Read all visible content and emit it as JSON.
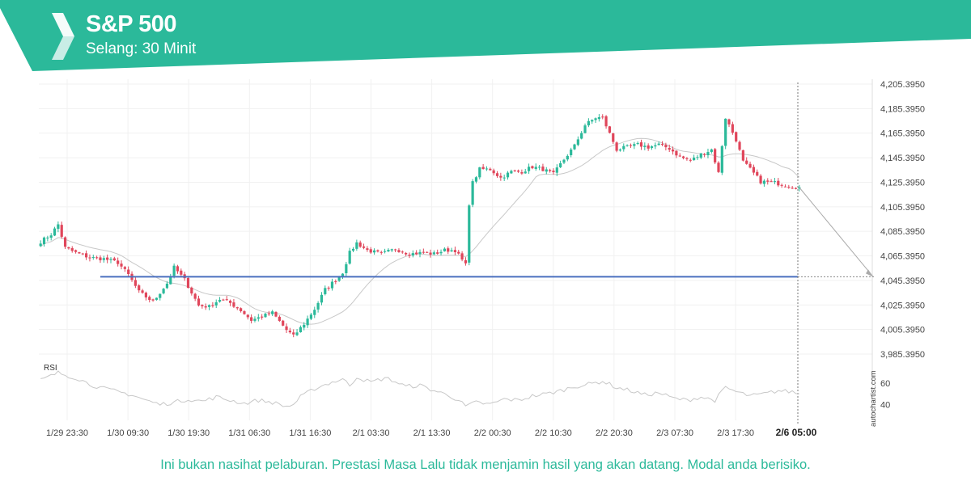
{
  "header": {
    "title": "S&P 500",
    "subtitle": "Selang: 30 Minit",
    "accent_color": "#2bb99a"
  },
  "watermark": "autochartist.com",
  "disclaimer": "Ini bukan nasihat pelaburan. Prestasi Masa Lalu tidak menjamin hasil yang akan datang. Modal anda berisiko.",
  "colors": {
    "bull": "#2bb99a",
    "bear": "#e0465b",
    "level_line": "#4a6fbf",
    "ma": "#c8c8c8",
    "rsi": "#c8c8c8"
  },
  "chart_data": {
    "type": "candlestick",
    "interval": "30 Minit",
    "y_tick_labels": [
      "4,205.3950",
      "4,185.3950",
      "4,165.3950",
      "4,145.3950",
      "4,125.3950",
      "4,105.3950",
      "4,085.3950",
      "4,065.3950",
      "4,045.3950",
      "4,025.3950",
      "4,005.3950",
      "3,985.3950"
    ],
    "ylim": [
      3985.395,
      4205.395
    ],
    "x_tick_labels": [
      "1/29 23:30",
      "1/30 09:30",
      "1/30 19:30",
      "1/31 06:30",
      "1/31 16:30",
      "2/1 03:30",
      "2/1 13:30",
      "2/2 00:30",
      "2/2 10:30",
      "2/2 20:30",
      "2/3 07:30",
      "2/3 17:30"
    ],
    "current_time_label": "2/6 05:00",
    "level": 4048.395,
    "projection": {
      "from": 4121,
      "to": 4048.395
    },
    "close_anchors": [
      [
        0,
        4077
      ],
      [
        3,
        4083
      ],
      [
        5,
        4091
      ],
      [
        7,
        4072
      ],
      [
        10,
        4068
      ],
      [
        14,
        4064
      ],
      [
        18,
        4063
      ],
      [
        22,
        4060
      ],
      [
        25,
        4050
      ],
      [
        28,
        4036
      ],
      [
        32,
        4028
      ],
      [
        36,
        4043
      ],
      [
        38,
        4056
      ],
      [
        41,
        4046
      ],
      [
        45,
        4025
      ],
      [
        48,
        4024
      ],
      [
        51,
        4030
      ],
      [
        54,
        4027
      ],
      [
        57,
        4021
      ],
      [
        60,
        4013
      ],
      [
        63,
        4016
      ],
      [
        66,
        4019
      ],
      [
        70,
        4005
      ],
      [
        72,
        4000
      ],
      [
        75,
        4010
      ],
      [
        78,
        4022
      ],
      [
        81,
        4038
      ],
      [
        84,
        4046
      ],
      [
        86,
        4052
      ],
      [
        88,
        4068
      ],
      [
        90,
        4076
      ],
      [
        93,
        4070
      ],
      [
        97,
        4067
      ],
      [
        101,
        4071
      ],
      [
        105,
        4067
      ],
      [
        109,
        4068
      ],
      [
        112,
        4067
      ],
      [
        115,
        4070
      ],
      [
        118,
        4070
      ],
      [
        121,
        4058
      ],
      [
        122,
        4108
      ],
      [
        123,
        4125
      ],
      [
        125,
        4136
      ],
      [
        128,
        4136
      ],
      [
        131,
        4129
      ],
      [
        134,
        4134
      ],
      [
        137,
        4134
      ],
      [
        140,
        4138
      ],
      [
        143,
        4136
      ],
      [
        146,
        4132
      ],
      [
        149,
        4144
      ],
      [
        152,
        4155
      ],
      [
        155,
        4172
      ],
      [
        158,
        4178
      ],
      [
        160,
        4178
      ],
      [
        162,
        4165
      ],
      [
        164,
        4152
      ],
      [
        167,
        4154
      ],
      [
        170,
        4156
      ],
      [
        173,
        4154
      ],
      [
        176,
        4156
      ],
      [
        179,
        4153
      ],
      [
        182,
        4146
      ],
      [
        185,
        4143
      ],
      [
        188,
        4148
      ],
      [
        191,
        4152
      ],
      [
        193,
        4133
      ],
      [
        195,
        4178
      ],
      [
        198,
        4160
      ],
      [
        200,
        4142
      ],
      [
        202,
        4136
      ],
      [
        205,
        4126
      ],
      [
        209,
        4125
      ],
      [
        212,
        4123
      ],
      [
        216,
        4121
      ]
    ],
    "rsi": {
      "label": "RSI",
      "tick_labels": [
        "60",
        "40"
      ],
      "range": [
        25,
        80
      ],
      "anchors": [
        [
          0,
          63
        ],
        [
          3,
          67
        ],
        [
          5,
          70
        ],
        [
          8,
          67
        ],
        [
          11,
          64
        ],
        [
          14,
          59
        ],
        [
          18,
          55
        ],
        [
          22,
          52
        ],
        [
          26,
          49
        ],
        [
          30,
          44
        ],
        [
          34,
          40
        ],
        [
          38,
          42
        ],
        [
          42,
          45
        ],
        [
          46,
          43
        ],
        [
          50,
          47
        ],
        [
          54,
          44
        ],
        [
          58,
          41
        ],
        [
          62,
          44
        ],
        [
          66,
          42
        ],
        [
          70,
          38
        ],
        [
          72,
          40
        ],
        [
          74,
          47
        ],
        [
          78,
          55
        ],
        [
          82,
          60
        ],
        [
          86,
          64
        ],
        [
          88,
          58
        ],
        [
          90,
          66
        ],
        [
          94,
          61
        ],
        [
          98,
          65
        ],
        [
          100,
          63
        ],
        [
          104,
          57
        ],
        [
          108,
          58
        ],
        [
          112,
          53
        ],
        [
          116,
          49
        ],
        [
          119,
          44
        ],
        [
          121,
          38
        ],
        [
          124,
          42
        ],
        [
          128,
          40
        ],
        [
          132,
          45
        ],
        [
          136,
          44
        ],
        [
          140,
          48
        ],
        [
          144,
          50
        ],
        [
          148,
          53
        ],
        [
          152,
          57
        ],
        [
          156,
          59
        ],
        [
          160,
          62
        ],
        [
          164,
          56
        ],
        [
          168,
          53
        ],
        [
          172,
          49
        ],
        [
          176,
          51
        ],
        [
          180,
          46
        ],
        [
          184,
          44
        ],
        [
          188,
          47
        ],
        [
          192,
          44
        ],
        [
          195,
          56
        ],
        [
          198,
          52
        ],
        [
          202,
          48
        ],
        [
          206,
          50
        ],
        [
          210,
          53
        ],
        [
          214,
          52
        ],
        [
          216,
          50
        ]
      ]
    }
  }
}
